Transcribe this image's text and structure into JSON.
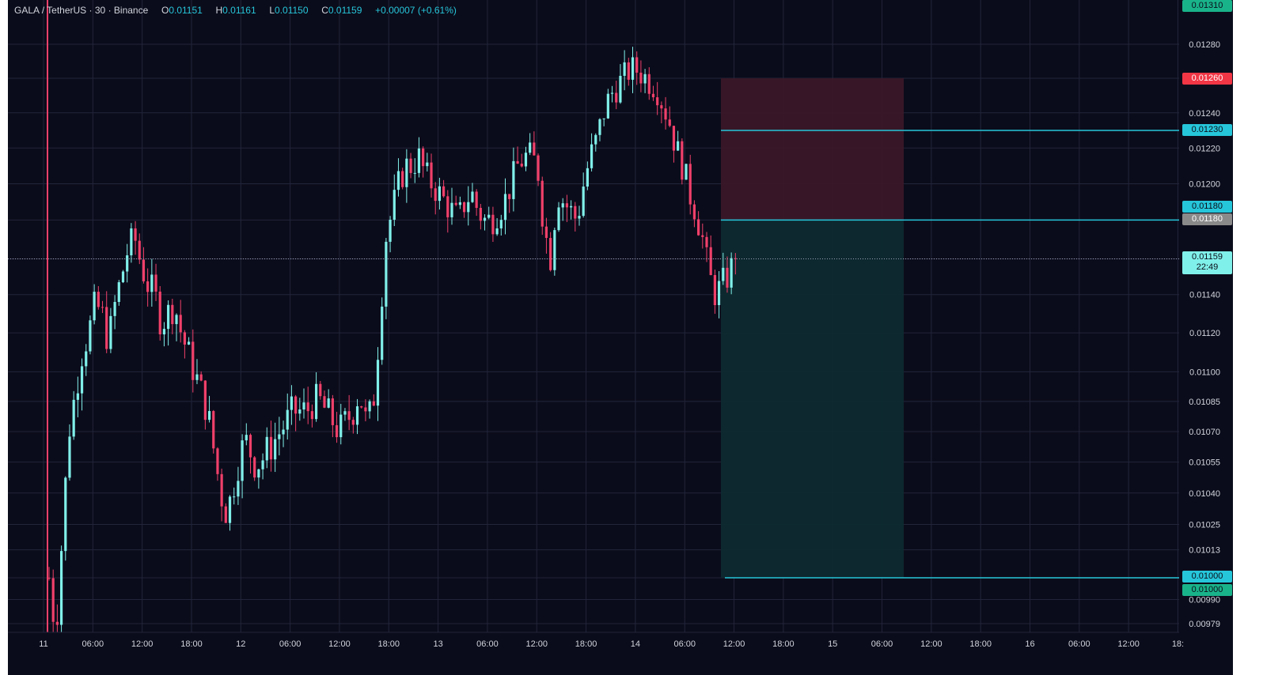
{
  "header": {
    "symbol": "GALA / TetherUS",
    "interval": "30",
    "exchange": "Binance",
    "open_label": "O",
    "open": "0.01151",
    "high_label": "H",
    "high": "0.01161",
    "low_label": "L",
    "low": "0.01150",
    "close_label": "C",
    "close": "0.01159",
    "change": "+0.00007",
    "change_pct": "(+0.61%)"
  },
  "price_tags": {
    "top": "0.01310",
    "stop_loss": "0.01260",
    "line_upper": "0.01230",
    "line_entry": "0.01180",
    "entry_grey": "0.01180",
    "current_price": "0.01159",
    "countdown": "22:49",
    "target_a": "0.01000",
    "target_b": "0.01000"
  },
  "colors": {
    "background": "#0b0c1b",
    "grid": "#22253a",
    "up": "#80f0ea",
    "down": "#f0406a",
    "line": "#26c6da",
    "stop_zone": "#3a1828",
    "target_zone": "#0e2a30",
    "stop_tag": "#f23645",
    "line_tag": "#26c6da",
    "target_tag": "#19b38a",
    "grey_tag": "#8a8a8a",
    "price_tag": "#80f0ea"
  },
  "chart_data": {
    "type": "candlestick",
    "title": "",
    "xlabel": "",
    "ylabel": "",
    "y_scale": "log",
    "ylim": [
      0.00975,
      0.01315
    ],
    "grid": true,
    "y_ticks": [
      "0.01310",
      "0.01280",
      "0.01260",
      "0.01240",
      "0.01220",
      "0.01200",
      "0.01180",
      "0.01159",
      "0.01140",
      "0.01120",
      "0.01100",
      "0.01085",
      "0.01070",
      "0.01055",
      "0.01040",
      "0.01025",
      "0.01013",
      "0.01000",
      "0.00990",
      "0.00979"
    ],
    "x_ticks": [
      "11",
      "06:00",
      "12:00",
      "18:00",
      "12",
      "06:00",
      "12:00",
      "18:00",
      "13",
      "06:00",
      "12:00",
      "18:00",
      "14",
      "06:00",
      "12:00",
      "18:00",
      "15",
      "06:00",
      "12:00",
      "18:00",
      "16",
      "06:00",
      "12:00",
      "18:"
    ],
    "last_close": 0.01159,
    "horizontal_lines": [
      0.0123,
      0.0118,
      0.01
    ],
    "position": {
      "side": "short",
      "stop": 0.0126,
      "entry": 0.0118,
      "target": 0.01
    },
    "price_path": [
      0.01,
      0.00975,
      0.0102,
      0.0107,
      0.0109,
      0.0111,
      0.0112,
      0.01135,
      0.0113,
      0.01115,
      0.01135,
      0.0115,
      0.01165,
      0.0117,
      0.01155,
      0.01145,
      0.0114,
      0.01125,
      0.0113,
      0.01135,
      0.0112,
      0.0111,
      0.011,
      0.0109,
      0.0108,
      0.0106,
      0.0104,
      0.0103,
      0.01045,
      0.0106,
      0.01065,
      0.01055,
      0.01055,
      0.0106,
      0.01065,
      0.0107,
      0.01075,
      0.0108,
      0.0108,
      0.0108,
      0.01085,
      0.01085,
      0.0108,
      0.01075,
      0.0107,
      0.01075,
      0.0108,
      0.0109,
      0.01075,
      0.0108,
      0.0112,
      0.0117,
      0.01185,
      0.012,
      0.0121,
      0.0121,
      0.01215,
      0.01205,
      0.012,
      0.01195,
      0.0119,
      0.01185,
      0.0118,
      0.0119,
      0.01195,
      0.01185,
      0.0118,
      0.0118,
      0.01185,
      0.0119,
      0.012,
      0.0121,
      0.01215,
      0.01215,
      0.0121,
      0.01175,
      0.0116,
      0.01195,
      0.0119,
      0.01185,
      0.0118,
      0.012,
      0.01215,
      0.01225,
      0.0124,
      0.0125,
      0.01255,
      0.0126,
      0.01265,
      0.01265,
      0.01262,
      0.01258,
      0.01255,
      0.01245,
      0.01235,
      0.0122,
      0.0121,
      0.01195,
      0.01185,
      0.0117,
      0.0115,
      0.0114,
      0.01145,
      0.01151,
      0.01159
    ]
  }
}
